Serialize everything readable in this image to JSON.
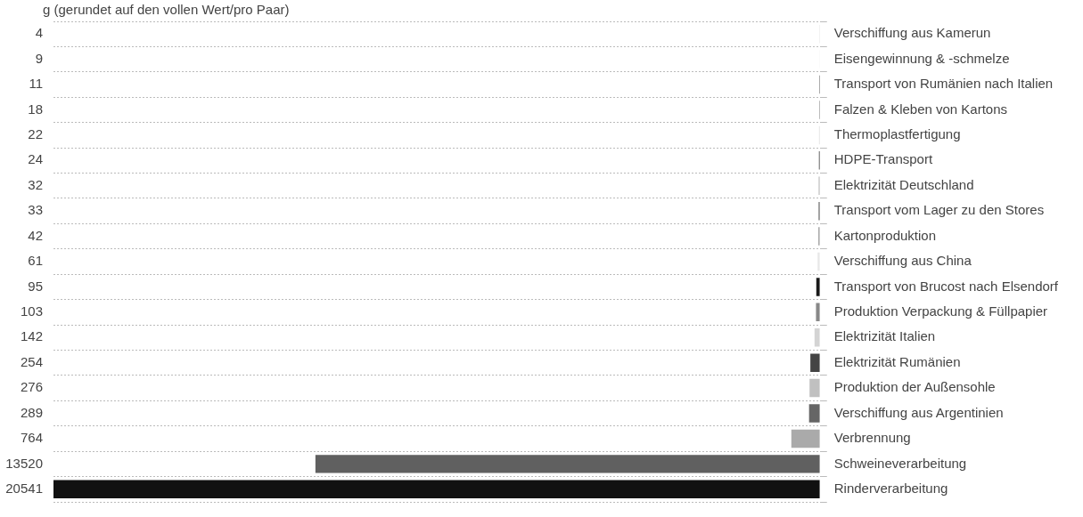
{
  "chart_data": {
    "type": "bar",
    "orientation": "horizontal",
    "xlabel": "g (gerundet auf den vollen Wert/pro Paar)",
    "categories": [
      "Verschiffung aus Kamerun",
      "Eisengewinnung & -schmelze",
      "Transport von Rumänien nach Italien",
      "Falzen & Kleben von Kartons",
      "Thermoplastfertigung",
      "HDPE-Transport",
      "Elektrizität Deutschland",
      "Transport vom Lager zu den Stores",
      "Kartonproduktion",
      "Verschiffung aus China",
      "Transport von Brucost nach Elsendorf",
      "Produktion Verpackung & Füllpapier",
      "Elektrizität Italien",
      "Elektrizität Rumänien",
      "Produktion der Außensohle",
      "Verschiffung aus Argentinien",
      "Verbrennung",
      "Schweineverarbeitung",
      "Rinderverarbeitung"
    ],
    "values": [
      4,
      9,
      11,
      18,
      22,
      24,
      32,
      33,
      42,
      61,
      95,
      103,
      142,
      254,
      276,
      289,
      764,
      13520,
      20541
    ],
    "colors": [
      "#999999",
      "#eeeeee",
      "#111111",
      "#888888",
      "#dddddd",
      "#444444",
      "#bbbbbb",
      "#666666",
      "#aaaaaa",
      "#e8e8e8",
      "#1a1a1a",
      "#888888",
      "#d4d4d4",
      "#444444",
      "#c0c0c0",
      "#666666",
      "#aaaaaa",
      "#606060",
      "#111111"
    ],
    "xlim": [
      20541,
      0
    ],
    "data_labels": true,
    "grid": "y",
    "legend": false
  }
}
